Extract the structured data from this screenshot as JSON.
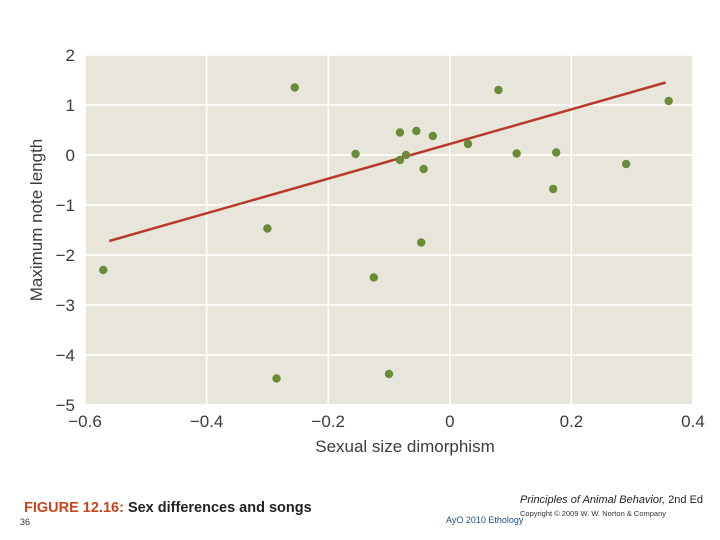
{
  "chart_data": {
    "type": "scatter",
    "xlabel": "Sexual size dimorphism",
    "ylabel": "Maximum note length",
    "xlim": [
      -0.6,
      0.4
    ],
    "ylim": [
      -5,
      2
    ],
    "x_ticks": [
      -0.6,
      -0.4,
      -0.2,
      0,
      0.2,
      0.4
    ],
    "x_tick_labels": [
      "−0.6",
      "−0.4",
      "−0.2",
      "0",
      "0.2",
      "0.4"
    ],
    "y_ticks": [
      2,
      1,
      0,
      -1,
      -2,
      -3,
      -4,
      -5
    ],
    "y_tick_labels": [
      "2",
      "1",
      "0",
      "−1",
      "−2",
      "−3",
      "−4",
      "−5"
    ],
    "grid": true,
    "colors": {
      "plot_background": "#e8e6db",
      "grid": "#ffffff",
      "points": "#6b8a3a",
      "trend_line": "#b83a2a"
    },
    "points": [
      {
        "x": -0.57,
        "y": -2.3
      },
      {
        "x": -0.3,
        "y": -1.47
      },
      {
        "x": -0.285,
        "y": -4.47
      },
      {
        "x": -0.255,
        "y": 1.35
      },
      {
        "x": -0.155,
        "y": 0.02
      },
      {
        "x": -0.125,
        "y": -2.45
      },
      {
        "x": -0.1,
        "y": -4.38
      },
      {
        "x": -0.082,
        "y": 0.45
      },
      {
        "x": -0.082,
        "y": -0.1
      },
      {
        "x": -0.072,
        "y": 0.0
      },
      {
        "x": -0.055,
        "y": 0.48
      },
      {
        "x": -0.043,
        "y": -0.28
      },
      {
        "x": -0.047,
        "y": -1.75
      },
      {
        "x": -0.028,
        "y": 0.38
      },
      {
        "x": 0.03,
        "y": 0.22
      },
      {
        "x": 0.08,
        "y": 1.3
      },
      {
        "x": 0.11,
        "y": 0.03
      },
      {
        "x": 0.17,
        "y": -0.68
      },
      {
        "x": 0.175,
        "y": 0.05
      },
      {
        "x": 0.29,
        "y": -0.18
      },
      {
        "x": 0.36,
        "y": 1.08
      }
    ],
    "trend_line": {
      "x": [
        -0.56,
        0.355
      ],
      "y": [
        -1.72,
        1.45
      ]
    }
  },
  "caption": {
    "figure_number": "FIGURE 12.16:",
    "figure_title": " Sex differences and songs"
  },
  "credit": {
    "book_title": "Principles of Animal Behavior,",
    "edition": " 2nd Ed",
    "copyright": "Copyright © 2009 W. W. Norton & Company"
  },
  "slide": {
    "number": "36",
    "footer": "AyO 2010 Ethology"
  }
}
